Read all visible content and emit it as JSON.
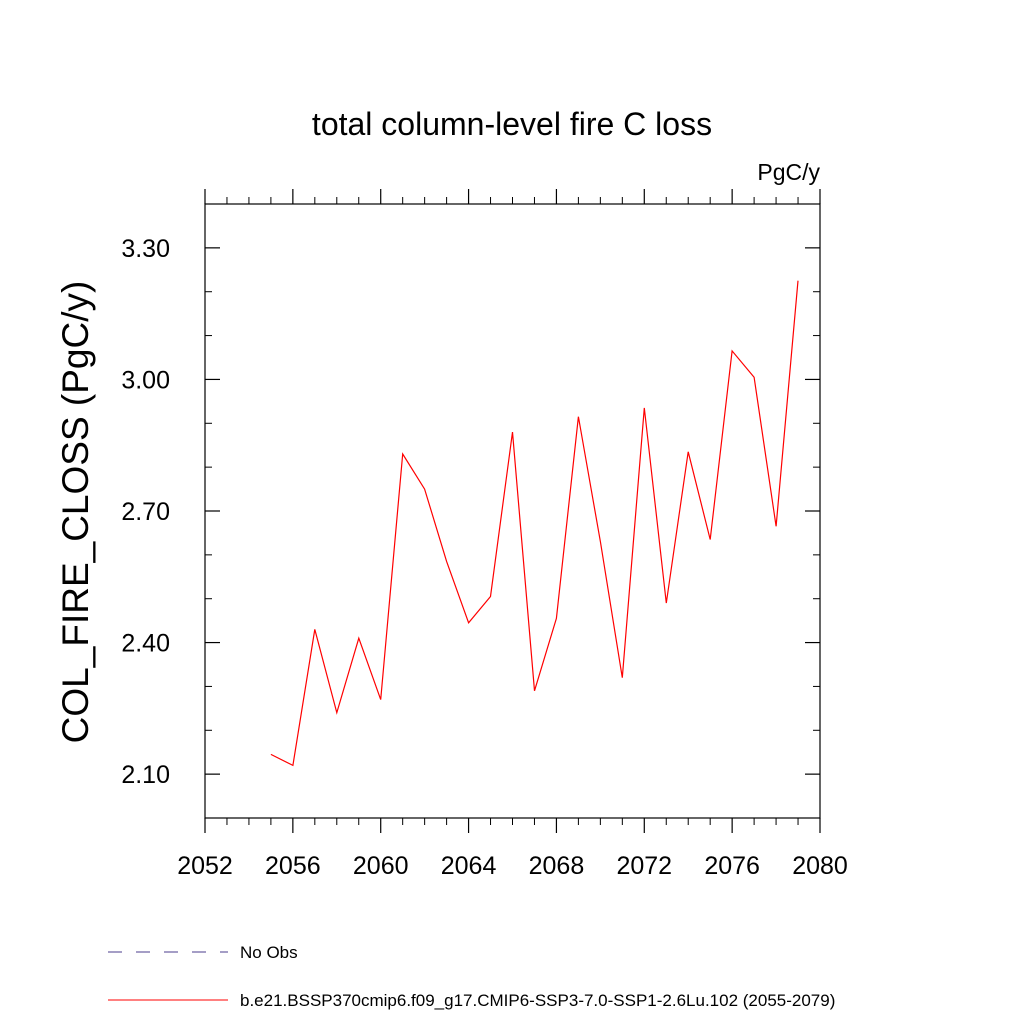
{
  "chart_data": {
    "type": "line",
    "title": "total column-level fire C loss",
    "units_label": "PgC/y",
    "ylabel": "COL_FIRE_CLOSS  (PgC/y)",
    "xlabel": "",
    "xlim": [
      2052,
      2080
    ],
    "ylim": [
      2.0,
      3.4
    ],
    "xticks": [
      2052,
      2056,
      2060,
      2064,
      2068,
      2072,
      2076,
      2080
    ],
    "xtick_labels": [
      "2052",
      "2056",
      "2060",
      "2064",
      "2068",
      "2072",
      "2076",
      "2080"
    ],
    "yticks": [
      2.1,
      2.4,
      2.7,
      3.0,
      3.3
    ],
    "ytick_labels": [
      "2.10",
      "2.40",
      "2.70",
      "3.00",
      "3.30"
    ],
    "grid": false,
    "legend_position": "bottom",
    "series": [
      {
        "name": "b.e21.BSSP370cmip6.f09_g17.CMIP6-SSP3-7.0-SSP1-2.6Lu.102 (2055-2079)",
        "color": "#ff0000",
        "style": "solid",
        "x": [
          2055,
          2056,
          2057,
          2058,
          2059,
          2060,
          2061,
          2062,
          2063,
          2064,
          2065,
          2066,
          2067,
          2068,
          2069,
          2070,
          2071,
          2072,
          2073,
          2074,
          2075,
          2076,
          2077,
          2078,
          2079
        ],
        "values": [
          2.145,
          2.12,
          2.43,
          2.24,
          2.41,
          2.27,
          2.83,
          2.75,
          2.585,
          2.445,
          2.505,
          2.88,
          2.29,
          2.455,
          2.915,
          2.63,
          2.32,
          2.935,
          2.49,
          2.835,
          2.635,
          3.065,
          3.005,
          2.665,
          3.225
        ]
      }
    ],
    "legend": [
      {
        "label": "No Obs",
        "color": "#4b3c8c",
        "style": "dashed"
      },
      {
        "label": "b.e21.BSSP370cmip6.f09_g17.CMIP6-SSP3-7.0-SSP1-2.6Lu.102 (2055-2079)",
        "color": "#ff0000",
        "style": "solid"
      }
    ]
  }
}
